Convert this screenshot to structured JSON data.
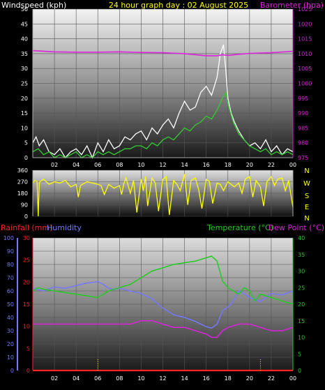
{
  "header": {
    "wind_title": "Windspeed (kph)",
    "title": "24 hour graph day : 02 August 2025",
    "baro_title": "Barometer (hpa)"
  },
  "bottom_header": {
    "rain_title": "Rainfall (mm)",
    "hum_title": "Humidity",
    "temp_title": "Temperature (°C)",
    "dew_title": "Dew Point (°C)"
  },
  "colors": {
    "wind_gust": "#ffffff",
    "wind_avg": "#33cc33",
    "barometer": "#dd22dd",
    "direction": "#ffff00",
    "humidity": "#7777ff",
    "temperature": "#22cc22",
    "dew_point": "#dd22dd",
    "rain": "#ff2222",
    "rain_rate": "#ffff00",
    "title": "#ffff00"
  },
  "chart_data": [
    {
      "type": "line",
      "name_hint": "wind-barometer",
      "x_ticks": [
        "02",
        "04",
        "06",
        "08",
        "10",
        "12",
        "14",
        "16",
        "18",
        "20",
        "22",
        "00"
      ],
      "x_range": [
        0,
        24
      ],
      "y_left": {
        "label": "Windspeed (kph)",
        "range": [
          0,
          50
        ],
        "ticks": [
          0,
          5,
          10,
          15,
          20,
          25,
          30,
          35,
          40,
          45,
          50
        ]
      },
      "y_right": {
        "label": "Barometer (hpa)",
        "range": [
          975,
          1025
        ],
        "ticks": [
          975,
          980,
          985,
          990,
          995,
          1000,
          1005,
          1010,
          1015,
          1020,
          1025
        ]
      },
      "series": [
        {
          "name": "gust",
          "axis": "left",
          "x": [
            0,
            0.3,
            0.6,
            1,
            1.5,
            2,
            2.5,
            3,
            3.5,
            4,
            4.5,
            5,
            5.5,
            6,
            6.5,
            7,
            7.5,
            8,
            8.5,
            9,
            9.5,
            10,
            10.5,
            11,
            11.5,
            12,
            12.5,
            13,
            13.5,
            14,
            14.5,
            15,
            15.5,
            16,
            16.5,
            17,
            17.3,
            17.6,
            17.8,
            18,
            18.3,
            18.6,
            19,
            19.5,
            20,
            20.5,
            21,
            21.5,
            22,
            22.5,
            23,
            23.5,
            24
          ],
          "y": [
            5,
            7,
            4,
            6,
            2,
            1,
            3,
            0,
            2,
            3,
            1,
            4,
            0,
            5,
            2,
            6,
            3,
            4,
            7,
            6,
            8,
            9,
            6,
            10,
            8,
            11,
            13,
            10,
            15,
            19,
            16,
            17,
            22,
            24,
            21,
            27,
            35,
            38,
            30,
            20,
            15,
            12,
            9,
            6,
            4,
            5,
            3,
            6,
            2,
            4,
            1,
            3,
            2
          ]
        },
        {
          "name": "average",
          "axis": "left",
          "x": [
            0,
            0.5,
            1,
            1.5,
            2,
            2.5,
            3,
            3.5,
            4,
            4.5,
            5,
            5.5,
            6,
            6.5,
            7,
            7.5,
            8,
            8.5,
            9,
            9.5,
            10,
            10.5,
            11,
            11.5,
            12,
            12.5,
            13,
            13.5,
            14,
            14.5,
            15,
            15.5,
            16,
            16.5,
            17,
            17.5,
            17.8,
            18,
            18.5,
            19,
            19.5,
            20,
            20.5,
            21,
            21.5,
            22,
            22.5,
            23,
            23.5,
            24
          ],
          "y": [
            2,
            3,
            1,
            2,
            0,
            1,
            0,
            1,
            2,
            0,
            1,
            0,
            2,
            1,
            2,
            1,
            2,
            3,
            3,
            4,
            4,
            3,
            5,
            4,
            6,
            7,
            6,
            8,
            10,
            9,
            11,
            12,
            14,
            13,
            16,
            20,
            22,
            18,
            12,
            8,
            6,
            4,
            3,
            2,
            3,
            1,
            2,
            1,
            2,
            1
          ]
        },
        {
          "name": "barometer",
          "axis": "right",
          "x": [
            0,
            2,
            4,
            6,
            8,
            10,
            12,
            14,
            16,
            17,
            17.5,
            18,
            19,
            20,
            22,
            24
          ],
          "y": [
            1011.0,
            1010.6,
            1010.5,
            1010.5,
            1010.6,
            1010.4,
            1010.3,
            1010.0,
            1009.3,
            1009.3,
            1009.6,
            1009.4,
            1009.8,
            1010.1,
            1010.3,
            1010.8
          ]
        }
      ]
    },
    {
      "type": "line",
      "name_hint": "wind-direction",
      "x_range": [
        0,
        24
      ],
      "y_left": {
        "range": [
          0,
          360
        ],
        "ticks": [
          0,
          90,
          180,
          270,
          360
        ]
      },
      "y_right_labels": [
        "N",
        "W",
        "S",
        "E",
        "N"
      ],
      "series": [
        {
          "name": "direction",
          "x": [
            0,
            0.2,
            0.4,
            0.5,
            0.6,
            1,
            1.5,
            2,
            2.5,
            3,
            3.5,
            4,
            4.2,
            4.4,
            5,
            5.5,
            6,
            6.3,
            6.6,
            7,
            7.5,
            8,
            8.2,
            8.4,
            8.6,
            9,
            9.3,
            9.6,
            10,
            10.2,
            10.4,
            10.6,
            11,
            11.3,
            11.6,
            12,
            12.3,
            12.6,
            13,
            13.3,
            13.6,
            14,
            14.3,
            14.6,
            15,
            15.3,
            15.6,
            16,
            16.3,
            16.6,
            17,
            17.3,
            17.6,
            18,
            18.3,
            18.6,
            19,
            19.3,
            19.6,
            20,
            20.3,
            20.6,
            21,
            21.3,
            21.6,
            22,
            22.3,
            22.6,
            23,
            23.3,
            23.6,
            24
          ],
          "y": [
            260,
            280,
            270,
            0,
            265,
            290,
            250,
            270,
            260,
            280,
            230,
            250,
            150,
            240,
            270,
            260,
            250,
            240,
            170,
            250,
            220,
            240,
            170,
            255,
            300,
            180,
            280,
            30,
            290,
            200,
            310,
            80,
            300,
            260,
            40,
            290,
            310,
            10,
            280,
            250,
            200,
            330,
            90,
            280,
            300,
            210,
            60,
            290,
            270,
            100,
            260,
            250,
            200,
            270,
            250,
            230,
            260,
            180,
            290,
            310,
            150,
            280,
            230,
            80,
            270,
            310,
            240,
            290,
            300,
            200,
            280,
            70
          ]
        }
      ]
    },
    {
      "type": "line",
      "name_hint": "rain-humidity-temperature",
      "x_ticks": [
        "02",
        "04",
        "06",
        "08",
        "10",
        "12",
        "14",
        "16",
        "18",
        "20",
        "22",
        "00"
      ],
      "x_range": [
        0,
        24
      ],
      "y_humidity": {
        "label": "Humidity",
        "range": [
          0,
          100
        ],
        "ticks": [
          0,
          10,
          20,
          30,
          40,
          50,
          60,
          70,
          80,
          90,
          100
        ]
      },
      "y_rain": {
        "label": "Rainfall (mm)",
        "range": [
          0,
          30
        ],
        "ticks": [
          0,
          5,
          10,
          15,
          20,
          25,
          30
        ]
      },
      "y_temp": {
        "label": "Temperature (°C)",
        "range": [
          0,
          40
        ],
        "ticks": [
          0,
          5,
          10,
          15,
          20,
          25,
          30,
          35,
          40
        ]
      },
      "series": [
        {
          "name": "Humidity",
          "axis": "humidity",
          "x": [
            0,
            1,
            2,
            3,
            4,
            5,
            6,
            6.5,
            7,
            7.5,
            8,
            9,
            10,
            11,
            12,
            13,
            14,
            15,
            16,
            16.5,
            17,
            17.5,
            18,
            18.5,
            19,
            19.5,
            20,
            21,
            22,
            23,
            24
          ],
          "y": [
            62,
            60,
            63,
            62,
            64,
            66,
            67,
            65,
            62,
            61,
            62,
            60,
            58,
            54,
            47,
            42,
            40,
            37,
            33,
            32,
            35,
            45,
            48,
            52,
            60,
            58,
            55,
            52,
            58,
            57,
            60
          ]
        },
        {
          "name": "Rainfall",
          "axis": "rain",
          "x": [
            0,
            24
          ],
          "y": [
            0,
            0
          ]
        },
        {
          "name": "Temperature",
          "axis": "temp",
          "x": [
            0,
            0.5,
            1,
            2,
            3,
            4,
            5,
            6,
            7,
            8,
            9,
            10,
            11,
            12,
            13,
            14,
            15,
            16,
            16.5,
            17,
            17.5,
            18,
            18.5,
            19,
            19.5,
            20,
            20.5,
            21,
            22,
            23,
            24
          ],
          "y": [
            24,
            25,
            24.5,
            24,
            23.5,
            23,
            22.5,
            22,
            24,
            25,
            26,
            28,
            30,
            31,
            32,
            32.5,
            33,
            34,
            34.5,
            33,
            27,
            25,
            24,
            23,
            25,
            24,
            21,
            23,
            22,
            21,
            20
          ]
        },
        {
          "name": "Dew Point",
          "axis": "temp",
          "x": [
            0,
            1,
            2,
            3,
            4,
            5,
            6,
            7,
            8,
            9,
            10,
            11,
            12,
            13,
            14,
            15,
            16,
            16.5,
            17,
            17.5,
            18,
            19,
            20,
            21,
            22,
            23,
            24
          ],
          "y": [
            14,
            14,
            14,
            14,
            14,
            14,
            14,
            14,
            14,
            14,
            15,
            15,
            14,
            13,
            13,
            12,
            11,
            10,
            10,
            12,
            13,
            14,
            14,
            13,
            12,
            12,
            13
          ]
        }
      ]
    }
  ]
}
